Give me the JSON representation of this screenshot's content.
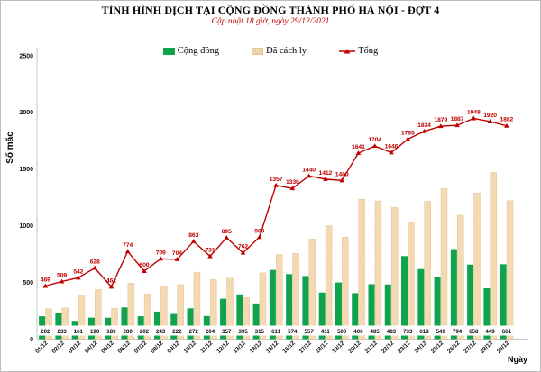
{
  "title": "TÌNH HÌNH DỊCH TẠI CỘNG ĐỒNG THÀNH PHỐ HÀ NỘI - ĐỢT 4",
  "subtitle": "Cập nhật 18 giờ, ngày 29/12/2021",
  "legend": {
    "items": [
      {
        "label": "Cộng đồng",
        "swatch": "green-bar"
      },
      {
        "label": "Đã cách ly",
        "swatch": "tan-hatched-bar"
      },
      {
        "label": "Tổng",
        "swatch": "red-line-triangle-marker"
      }
    ]
  },
  "colors": {
    "accent_red": "#C00000",
    "bar_green": "#0FA34C",
    "bar_tan": "#F6DCB6",
    "tan_border": "#E2C496",
    "tan_hatch": "#EACDA0",
    "axis_gray": "#C6C6C6",
    "text_black": "#111111"
  },
  "chart_data": {
    "type": "bar",
    "subtype": "grouped bars + line overlay",
    "title": "TÌNH HÌNH DỊCH TẠI CỘNG ĐỒNG THÀNH PHỐ HÀ NỘI - ĐỢT 4",
    "subtitle": "Cập nhật 18 giờ, ngày 29/12/2021",
    "xlabel": "Ngày",
    "ylabel": "Số mắc",
    "ylim": [
      0,
      2500
    ],
    "yticks": [
      0,
      500,
      1000,
      1500,
      2000,
      2500
    ],
    "grid": false,
    "legend_position": "top-center",
    "categories": [
      "01/12",
      "02/12",
      "03/12",
      "04/12",
      "05/12",
      "06/12",
      "07/12",
      "08/12",
      "09/12",
      "10/12",
      "11/12",
      "12/12",
      "13/12",
      "14/12",
      "15/12",
      "16/12",
      "17/12",
      "18/12",
      "19/12",
      "20/12",
      "21/12",
      "22/12",
      "23/12",
      "24/12",
      "25/12",
      "26/12",
      "27/12",
      "28/12",
      "29/12"
    ],
    "series": [
      {
        "name": "Cộng đồng",
        "type": "bar",
        "color": "#0FA34C",
        "value_labels": "printed in white boxes at bar base",
        "values": [
          202,
          233,
          161,
          190,
          189,
          280,
          202,
          243,
          222,
          272,
          204,
          357,
          395,
          315,
          611,
          574,
          557,
          411,
          500,
          406,
          485,
          483,
          733,
          618,
          549,
          794,
          658,
          449,
          661
        ]
      },
      {
        "name": "Đã cách ly",
        "type": "bar",
        "color": "#F6DCB6",
        "pattern": "diagonal-hatch",
        "value_labels": "none (heights read from axis; equal Tổng minus Cộng đồng)",
        "values": [
          267,
          276,
          381,
          438,
          273,
          494,
          398,
          466,
          482,
          591,
          527,
          538,
          367,
          585,
          746,
          756,
          883,
          1001,
          900,
          1235,
          1219,
          1163,
          1032,
          1216,
          1330,
          1093,
          1290,
          1471,
          1221
        ]
      },
      {
        "name": "Tổng",
        "type": "line",
        "color": "#C00000",
        "marker": "triangle",
        "value_labels": "printed above each point",
        "values": [
          469,
          509,
          542,
          628,
          462,
          774,
          600,
          709,
          704,
          863,
          731,
          895,
          762,
          900,
          1357,
          1330,
          1440,
          1412,
          1400,
          1641,
          1704,
          1646,
          1765,
          1834,
          1879,
          1887,
          1948,
          1920,
          1882
        ]
      }
    ]
  }
}
